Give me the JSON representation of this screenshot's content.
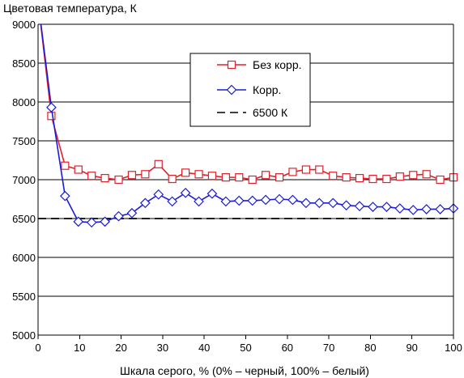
{
  "chart_data": {
    "type": "line",
    "title": "",
    "ylabel": "Цветовая температура, К",
    "xlabel": "Шкала серого, % (0% – черный, 100% – белый)",
    "xlim": [
      0,
      100
    ],
    "ylim": [
      5000,
      9000
    ],
    "xticks": [
      0,
      10,
      20,
      30,
      40,
      50,
      60,
      70,
      80,
      90,
      100
    ],
    "yticks": [
      5000,
      5500,
      6000,
      6500,
      7000,
      7500,
      8000,
      8500,
      9000
    ],
    "x_tick_labels": [
      "0",
      "10",
      "20",
      "30",
      "40",
      "50",
      "60",
      "70",
      "80",
      "90",
      "100"
    ],
    "y_tick_labels": [
      "5000",
      "5500",
      "6000",
      "6500",
      "7000",
      "7500",
      "8000",
      "8500",
      "9000"
    ],
    "grid": "horizontal",
    "legend_position": "top-right",
    "x": [
      0,
      3.2,
      6.5,
      9.7,
      12.9,
      16.1,
      19.4,
      22.6,
      25.8,
      29,
      32.3,
      35.5,
      38.7,
      41.9,
      45.2,
      48.4,
      51.6,
      54.8,
      58.1,
      61.3,
      64.5,
      67.7,
      71,
      74.2,
      77.4,
      80.6,
      83.9,
      87.1,
      90.3,
      93.5,
      96.8,
      100
    ],
    "series": [
      {
        "name": "Без корр.",
        "color": "#e0202a",
        "marker": "square",
        "line_style": "solid",
        "values": [
          9300,
          7820,
          7180,
          7130,
          7050,
          7020,
          7000,
          7060,
          7070,
          7200,
          7010,
          7090,
          7070,
          7050,
          7030,
          7030,
          7000,
          7060,
          7030,
          7100,
          7130,
          7130,
          7050,
          7030,
          7020,
          7010,
          7010,
          7040,
          7060,
          7070,
          7000,
          7030
        ]
      },
      {
        "name": "Корр.",
        "color": "#1c1cd8",
        "marker": "diamond",
        "line_style": "solid",
        "values": [
          9300,
          7930,
          6790,
          6460,
          6450,
          6460,
          6530,
          6570,
          6700,
          6810,
          6720,
          6830,
          6720,
          6820,
          6720,
          6730,
          6730,
          6740,
          6750,
          6740,
          6700,
          6700,
          6700,
          6670,
          6660,
          6650,
          6650,
          6630,
          6610,
          6620,
          6620,
          6630
        ]
      },
      {
        "name": "6500 К",
        "color": "#000000",
        "marker": "none",
        "line_style": "dashed",
        "values": [
          6500,
          6500,
          6500,
          6500,
          6500,
          6500,
          6500,
          6500,
          6500,
          6500,
          6500,
          6500,
          6500,
          6500,
          6500,
          6500,
          6500,
          6500,
          6500,
          6500,
          6500,
          6500,
          6500,
          6500,
          6500,
          6500,
          6500,
          6500,
          6500,
          6500,
          6500,
          6500
        ]
      }
    ]
  }
}
